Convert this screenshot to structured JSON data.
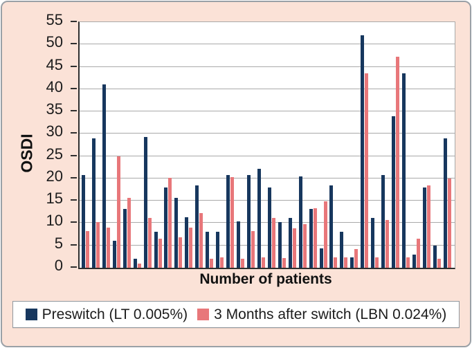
{
  "chart_data": {
    "type": "bar",
    "title": "",
    "xlabel": "Number of patients",
    "ylabel": "OSDI",
    "ylim": [
      0,
      55
    ],
    "ytick_step": 5,
    "yticks": [
      0,
      5,
      10,
      15,
      20,
      25,
      30,
      35,
      40,
      45,
      50,
      55
    ],
    "x_tick_labels_visible": false,
    "grid": "horizontal",
    "legend_position": "bottom",
    "n_groups": 36,
    "series": [
      {
        "name": "Preswitch (LT 0.005%)",
        "color": "#17375E",
        "values": [
          20.7,
          29,
          41,
          6,
          13.2,
          2,
          29.3,
          8,
          18,
          15.7,
          11.3,
          18.5,
          8,
          8,
          20.7,
          10.4,
          20.7,
          22.1,
          18,
          10.3,
          11.2,
          20.4,
          13.2,
          4.3,
          18.4,
          8,
          2.3,
          52,
          11.2,
          20.8,
          34,
          43.5,
          3,
          18,
          5,
          29
        ]
      },
      {
        "name": "3 Months after switch (LBN 0.024%)",
        "color": "#E8777A",
        "values": [
          8.2,
          10.3,
          9,
          25,
          15.7,
          1,
          11.1,
          6.5,
          20.2,
          6.8,
          9,
          12.2,
          2,
          2.3,
          20.3,
          2,
          8.2,
          2.4,
          11.2,
          2.1,
          8.9,
          9.8,
          13.4,
          14.9,
          2.3,
          2.3,
          4.2,
          43.5,
          2.3,
          10.7,
          47.3,
          2.3,
          6.5,
          18.5,
          2,
          20
        ]
      }
    ]
  },
  "colors": {
    "background": "#fbe2d7",
    "plot_background": "#ffffff",
    "gridline": "#a9a9a9",
    "axis": "#2f2f2f",
    "text": "#1c1c1c"
  }
}
